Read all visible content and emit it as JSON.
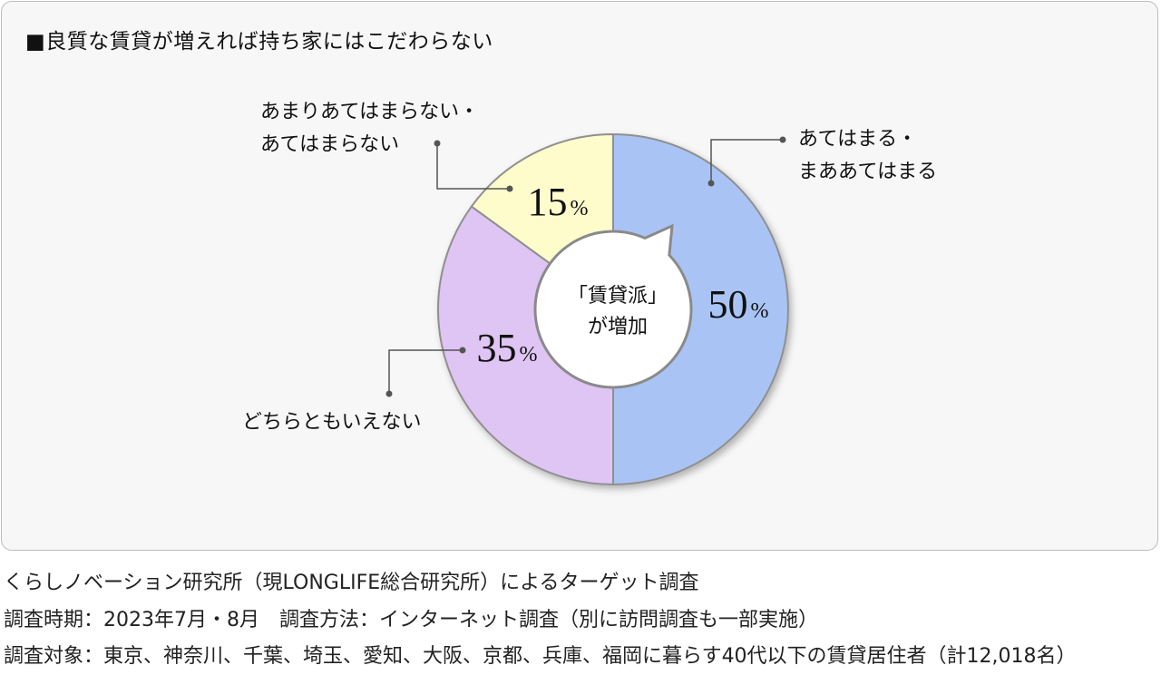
{
  "title": "■良質な賃貸が増えれば持ち家にはこだわらない",
  "chart_data": {
    "type": "pie",
    "style": "donut",
    "start": "top, clockwise",
    "slices": [
      {
        "label_lines": [
          "あてはまる・",
          "まああてはまる"
        ],
        "value": 50,
        "value_text": "50",
        "unit": "%",
        "color": "#a9c4f4"
      },
      {
        "label_lines": [
          "どちらともいえない"
        ],
        "value": 35,
        "value_text": "35",
        "unit": "%",
        "color": "#dfc5f3"
      },
      {
        "label_lines": [
          "あまりあてはまらない・",
          "あてはまらない"
        ],
        "value": 15,
        "value_text": "15",
        "unit": "%",
        "color": "#fffccc"
      }
    ],
    "center_label": [
      "「賃貸派」",
      "が増加"
    ]
  },
  "footnotes": [
    "くらしノベーション研究所（現LONGLIFE総合研究所）によるターゲット調査",
    "調査時期：2023年7月・8月　調査方法：インターネット調査（別に訪問調査も一部実施）",
    "調査対象：東京、神奈川、千葉、埼玉、愛知、大阪、京都、兵庫、福岡に暮らす40代以下の賃貸居住者（計12,018名）"
  ]
}
